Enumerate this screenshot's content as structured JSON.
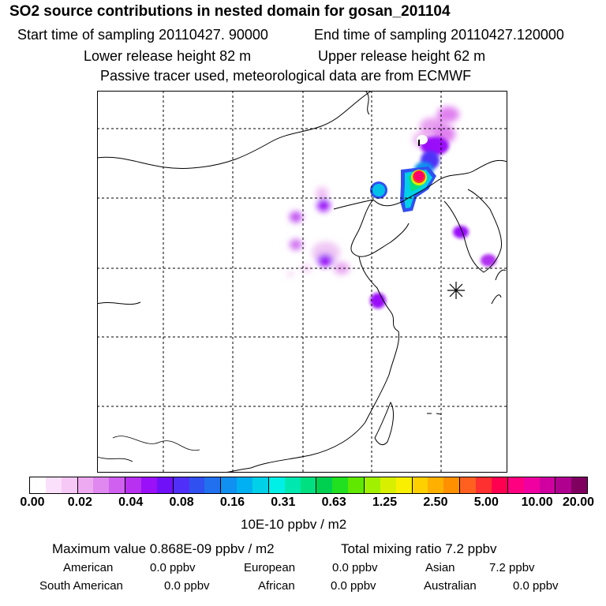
{
  "header": {
    "title": "SO2 source contributions in nested domain for gosan_201104",
    "start_time": "Start time of sampling 20110427. 90000",
    "end_time": "End time of sampling 20110427.120000",
    "lower_height": "Lower release height   82 m",
    "upper_height": "Upper release height   62 m",
    "note": "Passive tracer used, meteorological data are from ECMWF"
  },
  "colorbar": {
    "colors": [
      "#ffffff",
      "#fbe0fb",
      "#f6c8f6",
      "#eeaaf0",
      "#e088f0",
      "#d060f0",
      "#b830f0",
      "#9a10f8",
      "#7010f8",
      "#5030f8",
      "#3050f0",
      "#2070f0",
      "#1090f0",
      "#00b0f0",
      "#00d0e8",
      "#00f0e8",
      "#00e8b0",
      "#00e080",
      "#00d050",
      "#20e020",
      "#60e800",
      "#a0f000",
      "#d8f000",
      "#f8f000",
      "#ffd000",
      "#ffb000",
      "#ff9000",
      "#ff6020",
      "#ff3030",
      "#ff0050",
      "#ff0080",
      "#f000a0",
      "#d000a0",
      "#b00090",
      "#800060"
    ],
    "tick_labels": [
      "0.00",
      "0.02",
      "0.04",
      "0.08",
      "0.16",
      "0.31",
      "0.63",
      "1.25",
      "2.50",
      "5.00",
      "10.00",
      "20.00"
    ],
    "unit": "10E-10 ppbv / m2"
  },
  "summary": {
    "max_value": "Maximum value  0.868E-09 ppbv / m2",
    "total_mixing": "Total mixing ratio        7.2 ppbv",
    "regions": [
      {
        "name": "American",
        "value": "0.0 ppbv"
      },
      {
        "name": "European",
        "value": "0.0 ppbv"
      },
      {
        "name": "Asian",
        "value": "7.2 ppbv"
      },
      {
        "name": "South American",
        "value": "0.0 ppbv"
      },
      {
        "name": "African",
        "value": "0.0 ppbv"
      },
      {
        "name": "Australian",
        "value": "0.0 ppbv"
      }
    ]
  },
  "map": {
    "receptor_marker": "gosan-receptor",
    "plumes": [
      {
        "id": "ne-top",
        "level": "0.02-0.04"
      },
      {
        "id": "ne-mid",
        "level": "0.04-0.16"
      },
      {
        "id": "liaodong",
        "level": "0.16-5.00"
      },
      {
        "id": "bohai-ring",
        "level": "0.08-0.16"
      },
      {
        "id": "korea-n",
        "level": "0.04"
      },
      {
        "id": "korea-s",
        "level": "0.04"
      },
      {
        "id": "shandong-w",
        "level": "0.02-0.04"
      },
      {
        "id": "shanghai",
        "level": "0.04"
      }
    ]
  }
}
